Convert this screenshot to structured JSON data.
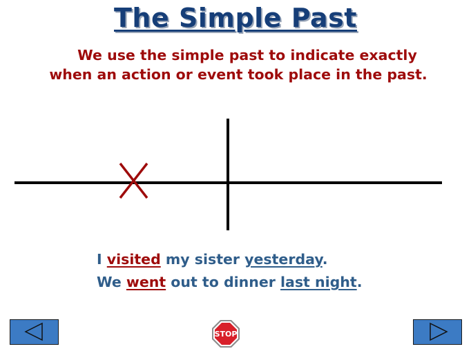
{
  "slide": {
    "title": "The Simple Past",
    "subtitle_line1": "We use the simple past to indicate exactly",
    "subtitle_line2": "when an action or event took place in the past."
  },
  "sentences": [
    {
      "pre": "I ",
      "verb": "visited",
      "mid": " my sister ",
      "time": "yesterday",
      "end": "."
    },
    {
      "pre": "We ",
      "verb": "went",
      "mid": " out to dinner ",
      "time": "last night",
      "end": "."
    }
  ],
  "controls": {
    "prev_icon": "triangle-left-icon",
    "next_icon": "triangle-right-icon",
    "stop_label": "STOP"
  },
  "colors": {
    "title": "#163e78",
    "subtitle": "#9e0b0b",
    "sentence": "#2f5d8a",
    "verb": "#9e0b0b",
    "marker": "#9e0b0b",
    "button": "#3c7bc4",
    "stop": "#d8202a"
  }
}
